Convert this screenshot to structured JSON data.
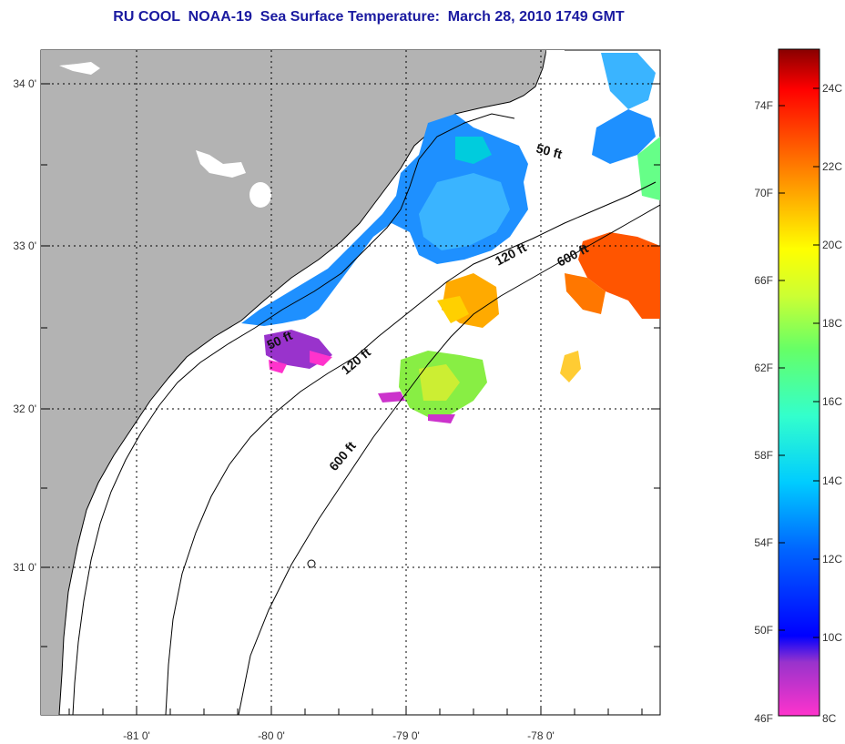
{
  "title": "RU COOL  NOAA-19  Sea Surface Temperature:  March 28, 2010 1749 GMT",
  "axes": {
    "lon_labels": [
      "-81 0'",
      "-80 0'",
      "-79 0'",
      "-78 0'"
    ],
    "lat_labels": [
      "34 0'",
      "33 0'",
      "32 0'",
      "31 0'"
    ]
  },
  "contours": {
    "shelf_50_north": "50 ft",
    "shelf_50_south": "50 ft",
    "shelf_120_north": "120 ft",
    "shelf_120_south": "120 ft",
    "shelf_600_north": "600 ft",
    "shelf_600_south": "600 ft"
  },
  "colorbar": {
    "fahrenheit": [
      "74F",
      "70F",
      "66F",
      "62F",
      "58F",
      "54F",
      "50F",
      "46F"
    ],
    "celsius": [
      "24C",
      "22C",
      "20C",
      "18C",
      "16C",
      "14C",
      "12C",
      "10C",
      "8C"
    ]
  },
  "colors": {
    "land": "#b3b3b3",
    "ocean_nodata": "#ffffff",
    "title": "#1a1aa0"
  }
}
